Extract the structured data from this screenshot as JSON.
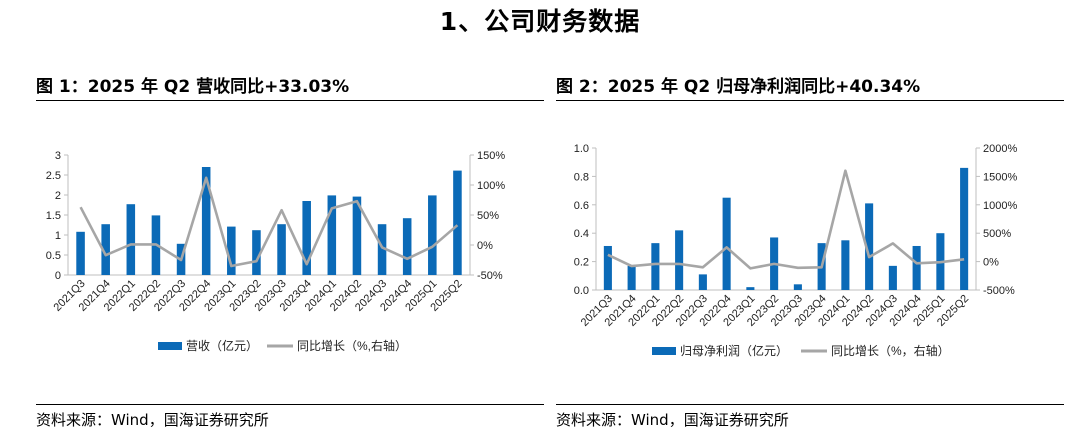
{
  "section_title": "1、公司财务数据",
  "panels": [
    {
      "title": "图 1：2025 年 Q2 营收同比+33.03%",
      "source": "资料来源：Wind，国海证券研究所"
    },
    {
      "title": "图 2：2025 年 Q2 归母净利润同比+40.34%",
      "source": "资料来源：Wind，国海证券研究所"
    }
  ],
  "colors": {
    "bar": "#0b6ab7",
    "line": "#a6a6a6",
    "axis": "#bfbfbf"
  },
  "chart_data": [
    {
      "type": "bar",
      "categories": [
        "2021Q3",
        "2021Q4",
        "2022Q1",
        "2022Q2",
        "2022Q3",
        "2022Q4",
        "2023Q1",
        "2023Q2",
        "2023Q3",
        "2023Q4",
        "2024Q1",
        "2024Q2",
        "2024Q3",
        "2024Q4",
        "2025Q1",
        "2025Q2"
      ],
      "series": [
        {
          "name": "营收（亿元）",
          "kind": "bar",
          "axis": "left",
          "values": [
            1.08,
            1.27,
            1.77,
            1.49,
            0.78,
            2.7,
            1.21,
            1.12,
            1.27,
            1.85,
            1.99,
            1.96,
            1.27,
            1.42,
            1.99,
            2.61
          ]
        },
        {
          "name": "同比增长（%,右轴）",
          "kind": "line",
          "axis": "right",
          "values": [
            63,
            -17,
            1,
            1,
            -25,
            112,
            -35,
            -27,
            58,
            -32,
            61,
            73,
            -4,
            -23,
            -3,
            33
          ]
        }
      ],
      "y_left": {
        "min": 0,
        "max": 3,
        "ticks": [
          "0",
          "0.5",
          "1",
          "1.5",
          "2",
          "2.5",
          "3"
        ]
      },
      "y_right": {
        "min": -50,
        "max": 150,
        "ticks": [
          "-50%",
          "0%",
          "50%",
          "100%",
          "150%"
        ]
      },
      "legend": [
        "营收（亿元）",
        "同比增长（%,右轴）"
      ],
      "legend_position": "bottom"
    },
    {
      "type": "bar",
      "categories": [
        "2021Q3",
        "2021Q4",
        "2022Q1",
        "2022Q2",
        "2022Q3",
        "2022Q4",
        "2023Q1",
        "2023Q2",
        "2023Q3",
        "2023Q4",
        "2024Q1",
        "2024Q2",
        "2024Q3",
        "2024Q4",
        "2025Q1",
        "2025Q2"
      ],
      "series": [
        {
          "name": "归母净利润（亿元）",
          "kind": "bar",
          "axis": "left",
          "values": [
            0.31,
            0.17,
            0.33,
            0.42,
            0.11,
            0.65,
            0.02,
            0.37,
            0.04,
            0.33,
            0.35,
            0.61,
            0.17,
            0.31,
            0.4,
            0.86
          ]
        },
        {
          "name": "同比增长（%，右轴）",
          "kind": "line",
          "axis": "right",
          "values": [
            120,
            -80,
            -40,
            -40,
            -100,
            250,
            -120,
            -40,
            -110,
            -100,
            1600,
            80,
            320,
            -30,
            -10,
            40
          ]
        }
      ],
      "y_left": {
        "min": 0,
        "max": 1.0,
        "ticks": [
          "0.0",
          "0.2",
          "0.4",
          "0.6",
          "0.8",
          "1.0"
        ]
      },
      "y_right": {
        "min": -500,
        "max": 2000,
        "ticks": [
          "-500%",
          "0%",
          "500%",
          "1000%",
          "1500%",
          "2000%"
        ]
      },
      "legend": [
        "归母净利润（亿元）",
        "同比增长（%，右轴）"
      ],
      "legend_position": "bottom"
    }
  ]
}
